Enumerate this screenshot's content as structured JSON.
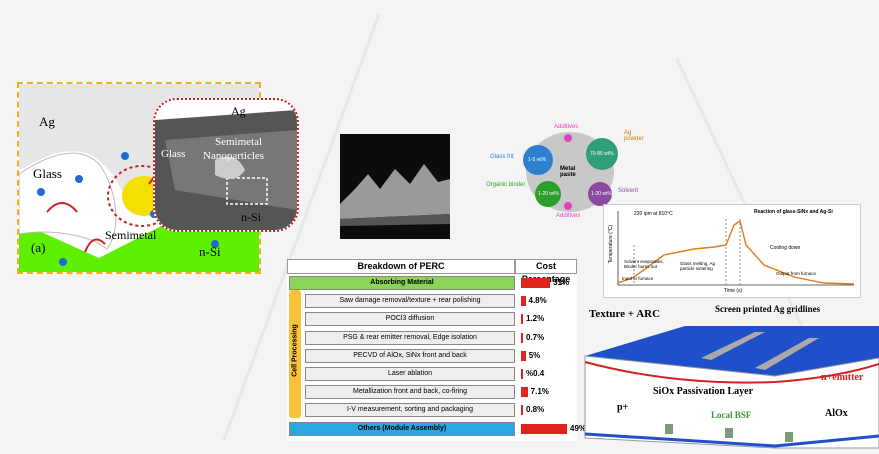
{
  "panel_a": {
    "ag": "Ag",
    "glass": "Glass",
    "semimetal": "Semimetal",
    "nsi": "n-Si",
    "label": "(a)",
    "inset": {
      "ag": "Ag",
      "glass": "Glass",
      "nanoparticles_line1": "Semimetal",
      "nanoparticles_line2": "Nanoparticles",
      "nsi": "n-Si"
    }
  },
  "paste_diagram": {
    "center": "Metal paste",
    "additives_top": "Additives",
    "additives_bottom": "Additives",
    "glass_frit": "Glass frit",
    "glass_frit_pct": "1-5 wt%",
    "ag_powder": "Ag powder",
    "ag_powder_pct": "70-85 wt%",
    "organic_binder": "Organic binder",
    "organic_pct": "1-20 wt%",
    "solvent": "Solvent",
    "solvent_pct": "1-20 wt%"
  },
  "firing_chart": {
    "legend": "220 ipm at 810°C",
    "annotation_top": "Reaction of glass-SiNx and Ag-Si",
    "solvent_note": "Solvent evaporates, Binder burns out",
    "glass_note": "Glass melting, Ag particle sintering",
    "cooling": "Cooling down",
    "input": "Input to furnace",
    "output": "Output from furnace",
    "xlabel": "Time (s)",
    "ylabel": "Temperature (°C)"
  },
  "cost_table": {
    "header_left": "Breakdown of PERC",
    "header_right": "Cost Percentage",
    "side_label": "Cell Processing",
    "rows": [
      {
        "label": "Absorbing Material",
        "pct": "31%",
        "value": 31
      },
      {
        "label": "Saw damage removal/texture + rear polishing",
        "pct": "4.8%",
        "value": 4.8
      },
      {
        "label": "POCl3 diffusion",
        "pct": "1.2%",
        "value": 1.2
      },
      {
        "label": "PSG & rear emitter removal, Edge isolation",
        "pct": "0.7%",
        "value": 0.7
      },
      {
        "label": "PECVD of AlOx, SiNx front and back",
        "pct": "5%",
        "value": 5
      },
      {
        "label": "Laser ablation",
        "pct": "%0.4",
        "value": 0.4
      },
      {
        "label": "Metallization front and back, co-firing",
        "pct": "7.1%",
        "value": 7.1
      },
      {
        "label": "I-V measurement, sorting and packaging",
        "pct": "0.8%",
        "value": 0.8
      },
      {
        "label": "Others (Module Assembly)",
        "pct": "49%",
        "value": 49
      }
    ]
  },
  "cell_diagram": {
    "texture": "Texture + ARC",
    "gridlines": "Screen printed Ag gridlines",
    "passivation": "SiOx Passivation Layer",
    "emitter": "n+emitter",
    "p_plus": "p+",
    "bsf": "Local BSF",
    "alox": "AlOx"
  },
  "colors": {
    "green": "#5ef000",
    "red_bar": "#e0231d",
    "absorbing_green": "#8cd35a",
    "others_blue": "#2aa7e0",
    "side_orange": "#f8c23a",
    "cell_blue": "#1f4fc9"
  }
}
